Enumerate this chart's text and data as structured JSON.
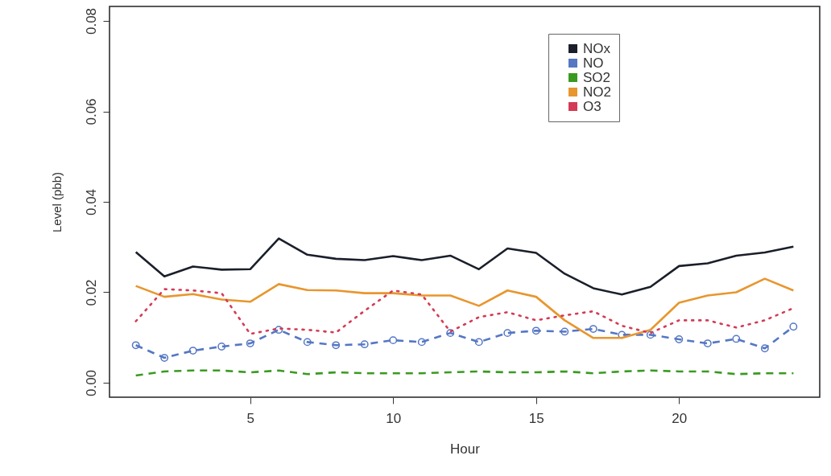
{
  "chart_data": {
    "type": "line",
    "xlabel": "Hour",
    "ylabel": "Level (pbb)",
    "x": [
      1,
      2,
      3,
      4,
      5,
      6,
      7,
      8,
      9,
      10,
      11,
      12,
      13,
      14,
      15,
      16,
      17,
      18,
      19,
      20,
      21,
      22,
      23,
      24
    ],
    "series": [
      {
        "name": "NOx",
        "color": "#1a1f2b",
        "line_style": "solid",
        "marker": "none",
        "values": [
          0.0289,
          0.0235,
          0.0257,
          0.025,
          0.0251,
          0.0319,
          0.0283,
          0.0274,
          0.0271,
          0.028,
          0.0271,
          0.0281,
          0.0251,
          0.0297,
          0.0287,
          0.0241,
          0.0209,
          0.0195,
          0.0212,
          0.0258,
          0.0264,
          0.0281,
          0.0288,
          0.0301
        ]
      },
      {
        "name": "NO",
        "color": "#5577c4",
        "line_style": "dashed",
        "marker": "circle",
        "values": [
          0.0083,
          0.0055,
          0.0071,
          0.008,
          0.0087,
          0.0117,
          0.009,
          0.0083,
          0.0085,
          0.0094,
          0.009,
          0.011,
          0.009,
          0.011,
          0.0115,
          0.0113,
          0.0119,
          0.0106,
          0.0106,
          0.0096,
          0.0087,
          0.0097,
          0.0076,
          0.0124
        ]
      },
      {
        "name": "SO2",
        "color": "#3a9a20",
        "line_style": "dashed",
        "marker": "none",
        "values": [
          0.0016,
          0.0025,
          0.0027,
          0.0027,
          0.0023,
          0.0027,
          0.0019,
          0.0023,
          0.0021,
          0.0021,
          0.0021,
          0.0023,
          0.0025,
          0.0023,
          0.0023,
          0.0025,
          0.0021,
          0.0025,
          0.0027,
          0.0025,
          0.0025,
          0.0019,
          0.0021,
          0.0021
        ]
      },
      {
        "name": "NO2",
        "color": "#e8962e",
        "line_style": "solid",
        "marker": "none",
        "values": [
          0.0214,
          0.019,
          0.0196,
          0.0184,
          0.0179,
          0.0218,
          0.0205,
          0.0204,
          0.0198,
          0.0198,
          0.0193,
          0.0193,
          0.017,
          0.0204,
          0.019,
          0.0138,
          0.0099,
          0.0099,
          0.0117,
          0.0177,
          0.0193,
          0.02,
          0.023,
          0.0204
        ]
      },
      {
        "name": "O3",
        "color": "#d43a55",
        "line_style": "dotted",
        "marker": "none",
        "values": [
          0.0136,
          0.0207,
          0.0204,
          0.0198,
          0.0108,
          0.012,
          0.0117,
          0.0111,
          0.0159,
          0.0204,
          0.0195,
          0.0113,
          0.0145,
          0.0156,
          0.0138,
          0.0149,
          0.0158,
          0.0126,
          0.011,
          0.0138,
          0.0138,
          0.0122,
          0.0138,
          0.0165
        ]
      }
    ],
    "xlim": [
      0.08,
      24.92
    ],
    "xticks": [
      5,
      10,
      15,
      20
    ],
    "ylim": [
      -0.0032,
      0.0832
    ],
    "yticks": [
      {
        "value": 0,
        "label": "0.00"
      },
      {
        "value": 0.02,
        "label": "0.02"
      },
      {
        "value": 0.04,
        "label": "0.04"
      },
      {
        "value": 0.06,
        "label": "0.06"
      },
      {
        "value": 0.08,
        "label": "0.08"
      }
    ],
    "grid": false,
    "legend": "top right"
  }
}
